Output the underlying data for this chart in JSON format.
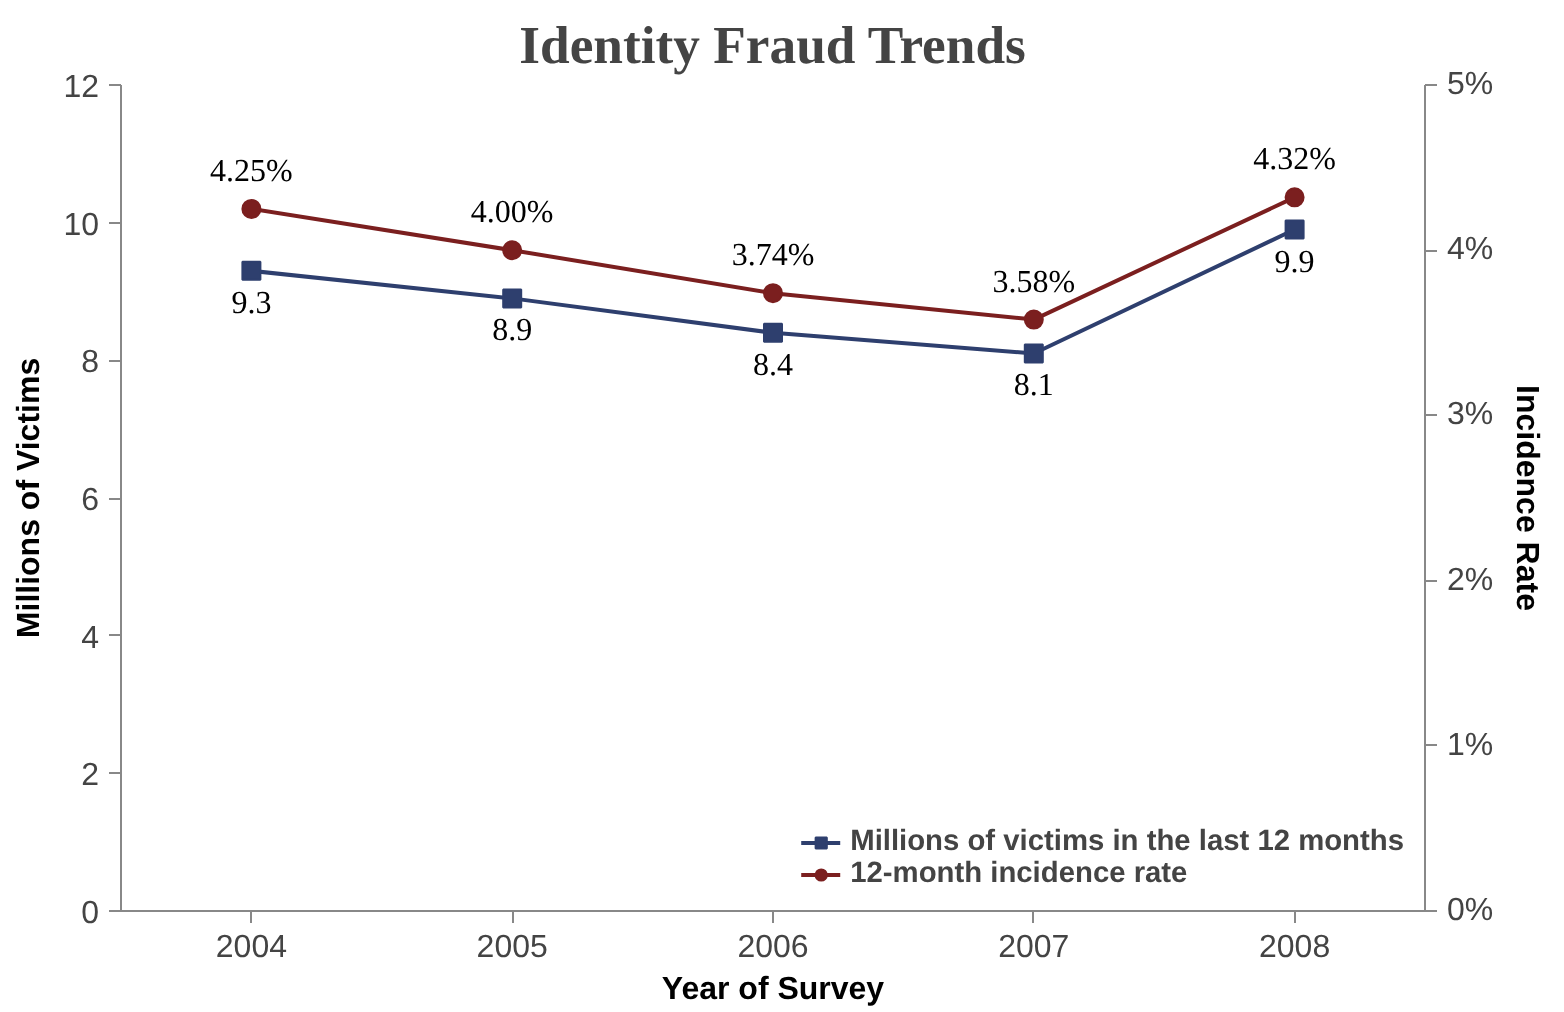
{
  "chart_data": {
    "type": "line",
    "title": "Identity Fraud Trends",
    "xlabel": "Year of Survey",
    "ylabel": "Millions of Victims",
    "y2label": "Incidence Rate",
    "categories": [
      "2004",
      "2005",
      "2006",
      "2007",
      "2008"
    ],
    "series": [
      {
        "name": "Millions of victims in the last 12 months",
        "color": "#2e3f6e",
        "marker": "square",
        "values": [
          9.3,
          8.9,
          8.4,
          8.1,
          9.9
        ],
        "value_labels": [
          "9.3",
          "8.9",
          "8.4",
          "8.1",
          "9.9"
        ]
      },
      {
        "name": "12-month incidence rate",
        "color": "#7b1f1f",
        "marker": "circle",
        "axis": "y2",
        "values": [
          4.25,
          4.0,
          3.74,
          3.58,
          4.32
        ],
        "value_labels": [
          "4.25%",
          "4.00%",
          "3.74%",
          "3.58%",
          "4.32%"
        ]
      }
    ],
    "ylim": [
      0,
      12
    ],
    "yticks": [
      0,
      2,
      4,
      6,
      8,
      10,
      12
    ],
    "y2lim": [
      0,
      5
    ],
    "y2ticks": [
      {
        "value": 0,
        "label": "0%"
      },
      {
        "value": 1,
        "label": "1%"
      },
      {
        "value": 2,
        "label": "2%"
      },
      {
        "value": 3,
        "label": "3%"
      },
      {
        "value": 4,
        "label": "4%"
      },
      {
        "value": 5,
        "label": "5%"
      }
    ],
    "grid": false,
    "legend": "bottom right"
  }
}
